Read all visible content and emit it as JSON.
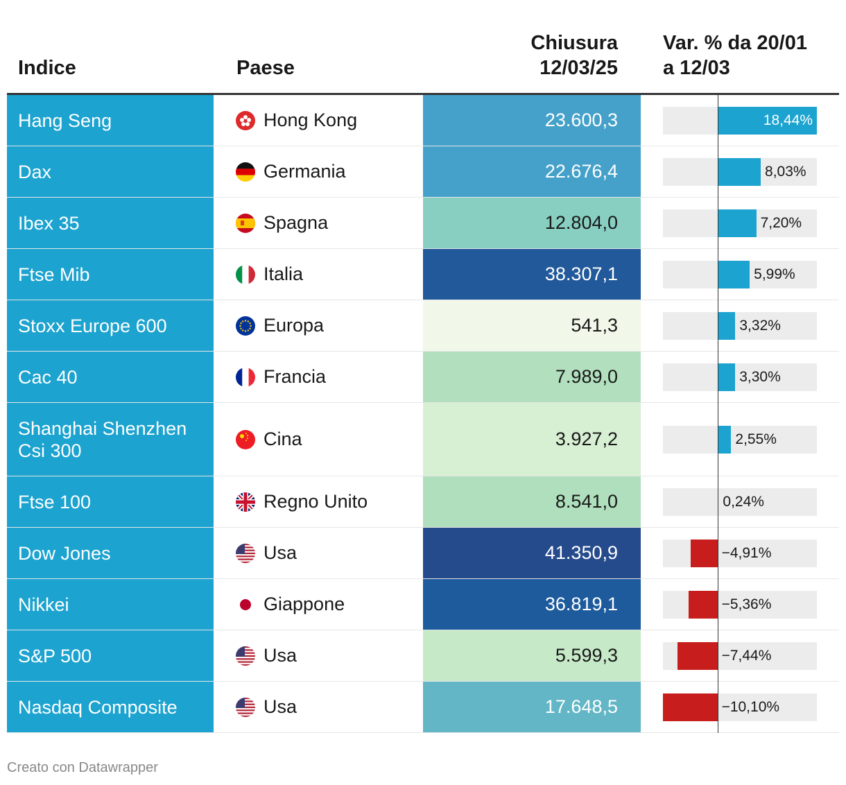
{
  "header": {
    "col_index": "Indice",
    "col_country": "Paese",
    "col_close_line1": "Chiusura",
    "col_close_line2": "12/03/25",
    "col_var_line1": "Var. % da 20/01",
    "col_var_line2": "a 12/03"
  },
  "footer": {
    "credit": "Creato con Datawrapper"
  },
  "colors": {
    "name_bg": "#1ca3cf",
    "positive_bar": "#1ca3cf",
    "negative_bar": "#c71e1d",
    "track": "#ececec"
  },
  "chart_data": {
    "type": "table",
    "title": "",
    "columns": [
      "Indice",
      "Paese",
      "Chiusura 12/03/25",
      "Var. % da 20/01 a 12/03"
    ],
    "bar_domain": [
      -10.1,
      18.44
    ],
    "rows": [
      {
        "index": "Hang Seng",
        "country": "Hong Kong",
        "flag": "hk-flag-icon",
        "close": "23.600,3",
        "close_bg": "#45a1c9",
        "close_color": "#ffffff",
        "var": 18.44,
        "var_label": "18,44%"
      },
      {
        "index": "Dax",
        "country": "Germania",
        "flag": "de-flag-icon",
        "close": "22.676,4",
        "close_bg": "#45a1c9",
        "close_color": "#ffffff",
        "var": 8.03,
        "var_label": "8,03%"
      },
      {
        "index": "Ibex 35",
        "country": "Spagna",
        "flag": "es-flag-icon",
        "close": "12.804,0",
        "close_bg": "#88cfc2",
        "close_color": "#181818",
        "var": 7.2,
        "var_label": "7,20%"
      },
      {
        "index": "Ftse Mib",
        "country": "Italia",
        "flag": "it-flag-icon",
        "close": "38.307,1",
        "close_bg": "#21599a",
        "close_color": "#ffffff",
        "var": 5.99,
        "var_label": "5,99%"
      },
      {
        "index": "Stoxx Europe 600",
        "country": "Europa",
        "flag": "eu-flag-icon",
        "close": "541,3",
        "close_bg": "#f1f8ea",
        "close_color": "#181818",
        "var": 3.32,
        "var_label": "3,32%"
      },
      {
        "index": "Cac 40",
        "country": "Francia",
        "flag": "fr-flag-icon",
        "close": "7.989,0",
        "close_bg": "#b2e0bf",
        "close_color": "#181818",
        "var": 3.3,
        "var_label": "3,30%"
      },
      {
        "index": "Shanghai Shenzhen Csi 300",
        "country": "Cina",
        "flag": "cn-flag-icon",
        "close": "3.927,2",
        "close_bg": "#d7efd3",
        "close_color": "#181818",
        "var": 2.55,
        "var_label": "2,55%"
      },
      {
        "index": "Ftse 100",
        "country": "Regno Unito",
        "flag": "uk-flag-icon",
        "close": "8.541,0",
        "close_bg": "#b0dfbd",
        "close_color": "#181818",
        "var": 0.24,
        "var_label": "0,24%"
      },
      {
        "index": "Dow Jones",
        "country": "Usa",
        "flag": "us-flag-icon",
        "close": "41.350,9",
        "close_bg": "#264b8c",
        "close_color": "#ffffff",
        "var": -4.91,
        "var_label": "−4,91%"
      },
      {
        "index": "Nikkei",
        "country": "Giappone",
        "flag": "jp-flag-icon",
        "close": "36.819,1",
        "close_bg": "#1d5b9c",
        "close_color": "#ffffff",
        "var": -5.36,
        "var_label": "−5,36%"
      },
      {
        "index": "S&P 500",
        "country": "Usa",
        "flag": "us-flag-icon",
        "close": "5.599,3",
        "close_bg": "#c6e9c8",
        "close_color": "#181818",
        "var": -7.44,
        "var_label": "−7,44%"
      },
      {
        "index": "Nasdaq Composite",
        "country": "Usa",
        "flag": "us-flag-icon",
        "close": "17.648,5",
        "close_bg": "#62b6c6",
        "close_color": "#ffffff",
        "var": -10.1,
        "var_label": "−10,10%"
      }
    ]
  }
}
